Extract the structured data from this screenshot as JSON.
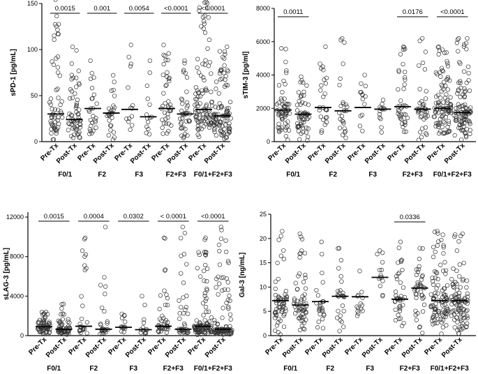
{
  "chart_data": [
    {
      "type": "scatter",
      "subtype": "dot-plot-with-median",
      "ylabel": "sPD-1 [pg/mL]",
      "ylim": [
        0,
        150
      ],
      "yticks": [
        0,
        50,
        100,
        150
      ],
      "categories": [
        "Pre-Tx",
        "Post-Tx",
        "Pre-Tx",
        "Post-Tx",
        "Pre-Tx",
        "Post-Tx",
        "Pre-Tx",
        "Post-Tx",
        "Pre-Tx",
        "Post-Tx"
      ],
      "groups": [
        "F0/1",
        "F2",
        "F3",
        "F2+F3",
        "F0/1+F2+F3"
      ],
      "medians": [
        30,
        24,
        36,
        31,
        35,
        27,
        36,
        30,
        35,
        28
      ],
      "max_values": [
        162,
        103,
        88,
        72,
        105,
        88,
        105,
        88,
        162,
        103
      ],
      "n_points": [
        60,
        60,
        26,
        26,
        14,
        14,
        40,
        40,
        100,
        100
      ],
      "p_values": [
        {
          "pair": [
            0,
            1
          ],
          "label": "0.0015"
        },
        {
          "pair": [
            2,
            3
          ],
          "label": "0.001"
        },
        {
          "pair": [
            4,
            5
          ],
          "label": "0.0054"
        },
        {
          "pair": [
            6,
            7
          ],
          "label": "<0.0001"
        },
        {
          "pair": [
            8,
            9
          ],
          "label": "<0.0001"
        }
      ]
    },
    {
      "type": "scatter",
      "subtype": "dot-plot-with-median",
      "ylabel": "sTIM-3 [pg/ml]",
      "ylim": [
        0,
        8000
      ],
      "yticks": [
        0,
        2000,
        4000,
        6000,
        8000
      ],
      "categories": [
        "Pre-Tx",
        "Post-Tx",
        "Pre-Tx",
        "Post-Tx",
        "Pre-Tx",
        "Post-Tx",
        "Pre-Tx",
        "Post-Tx",
        "Pre-Tx",
        "Post-Tx"
      ],
      "groups": [
        "F0/1",
        "F2",
        "F3",
        "F2+F3",
        "F0/1+F2+F3"
      ],
      "medians": [
        1900,
        1650,
        2050,
        1850,
        2050,
        1950,
        2100,
        1950,
        2000,
        1750
      ],
      "max_values": [
        5600,
        3900,
        5700,
        6200,
        4000,
        2500,
        5700,
        6200,
        5700,
        6200
      ],
      "n_points": [
        60,
        60,
        26,
        26,
        14,
        14,
        40,
        40,
        100,
        100
      ],
      "p_values": [
        {
          "pair": [
            0,
            1
          ],
          "label": "0.0011"
        },
        {
          "pair": [
            6,
            7
          ],
          "label": "0.0176"
        },
        {
          "pair": [
            8,
            9
          ],
          "label": "<0.0001"
        }
      ]
    },
    {
      "type": "scatter",
      "subtype": "dot-plot-with-median",
      "ylabel": "sLAG-3 [pg/mL]",
      "ylim": [
        0,
        12500
      ],
      "yticks": [
        0,
        4000,
        8000,
        12000
      ],
      "categories": [
        "Pre-Tx",
        "Post-Tx",
        "Pre-Tx",
        "Post-Tx",
        "Pre-Tx",
        "Post-Tx",
        "Pre-Tx",
        "Post-Tx",
        "Pre-Tx",
        "Post-Tx"
      ],
      "groups": [
        "F0/1",
        "F2",
        "F3",
        "F2+F3",
        "F0/1+F2+F3"
      ],
      "medians": [
        900,
        650,
        950,
        650,
        850,
        600,
        950,
        650,
        950,
        650
      ],
      "max_values": [
        2400,
        3200,
        9900,
        11000,
        2200,
        4000,
        9900,
        11000,
        9900,
        11000
      ],
      "n_points": [
        60,
        60,
        26,
        26,
        14,
        14,
        40,
        40,
        100,
        100
      ],
      "p_values": [
        {
          "pair": [
            0,
            1
          ],
          "label": "0.0015"
        },
        {
          "pair": [
            2,
            3
          ],
          "label": "0.0004"
        },
        {
          "pair": [
            4,
            5
          ],
          "label": "0.0302"
        },
        {
          "pair": [
            6,
            7
          ],
          "label": "< 0.0001"
        },
        {
          "pair": [
            8,
            9
          ],
          "label": "<0.0001"
        }
      ]
    },
    {
      "type": "scatter",
      "subtype": "dot-plot-with-median",
      "ylabel": "Gal-3 [ng/mL]",
      "ylim": [
        0,
        25
      ],
      "yticks": [
        0,
        5,
        10,
        15,
        20,
        25
      ],
      "categories": [
        "Pre-Tx",
        "Post-Tx",
        "Pre-Tx",
        "Post-Tx",
        "Pre-Tx",
        "Post-Tx",
        "Pre-Tx",
        "Post-Tx",
        "Pre-Tx",
        "Post-Tx"
      ],
      "groups": [
        "F0/1",
        "F2",
        "F3",
        "F2+F3",
        "F0/1+F2+F3"
      ],
      "medians": [
        7.2,
        6.3,
        7,
        8.1,
        8,
        12,
        7.5,
        9.8,
        7.2,
        7.2
      ],
      "max_values": [
        21.5,
        21,
        19.3,
        18,
        13.3,
        17.5,
        19.3,
        18,
        21.5,
        21
      ],
      "n_points": [
        60,
        60,
        26,
        26,
        14,
        14,
        40,
        40,
        100,
        100
      ],
      "p_values": [
        {
          "pair": [
            6,
            7
          ],
          "label": "0.0336"
        }
      ]
    }
  ]
}
